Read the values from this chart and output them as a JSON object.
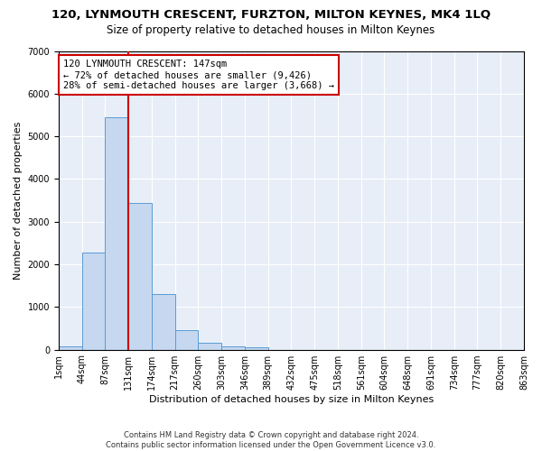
{
  "title": "120, LYNMOUTH CRESCENT, FURZTON, MILTON KEYNES, MK4 1LQ",
  "subtitle": "Size of property relative to detached houses in Milton Keynes",
  "xlabel": "Distribution of detached houses by size in Milton Keynes",
  "ylabel": "Number of detached properties",
  "bar_values": [
    75,
    2280,
    5450,
    3430,
    1310,
    460,
    155,
    80,
    45,
    0,
    0,
    0,
    0,
    0,
    0,
    0,
    0,
    0,
    0,
    0
  ],
  "bin_labels": [
    "1sqm",
    "44sqm",
    "87sqm",
    "131sqm",
    "174sqm",
    "217sqm",
    "260sqm",
    "303sqm",
    "346sqm",
    "389sqm",
    "432sqm",
    "475sqm",
    "518sqm",
    "561sqm",
    "604sqm",
    "648sqm",
    "691sqm",
    "734sqm",
    "777sqm",
    "820sqm",
    "863sqm"
  ],
  "bar_color": "#c5d8f0",
  "bar_edge_color": "#5b9bd5",
  "vline_color": "#cc0000",
  "annotation_text": "120 LYNMOUTH CRESCENT: 147sqm\n← 72% of detached houses are smaller (9,426)\n28% of semi-detached houses are larger (3,668) →",
  "annotation_box_color": "#ffffff",
  "annotation_box_edge": "#cc0000",
  "ylim": [
    0,
    7000
  ],
  "yticks": [
    0,
    1000,
    2000,
    3000,
    4000,
    5000,
    6000,
    7000
  ],
  "footer": "Contains HM Land Registry data © Crown copyright and database right 2024.\nContains public sector information licensed under the Open Government Licence v3.0.",
  "plot_bg_color": "#e8eef7",
  "fig_bg_color": "#ffffff",
  "grid_color": "#ffffff",
  "title_fontsize": 9.5,
  "subtitle_fontsize": 8.5,
  "xlabel_fontsize": 8,
  "ylabel_fontsize": 8,
  "tick_fontsize": 7,
  "annotation_fontsize": 7.5,
  "footer_fontsize": 6
}
